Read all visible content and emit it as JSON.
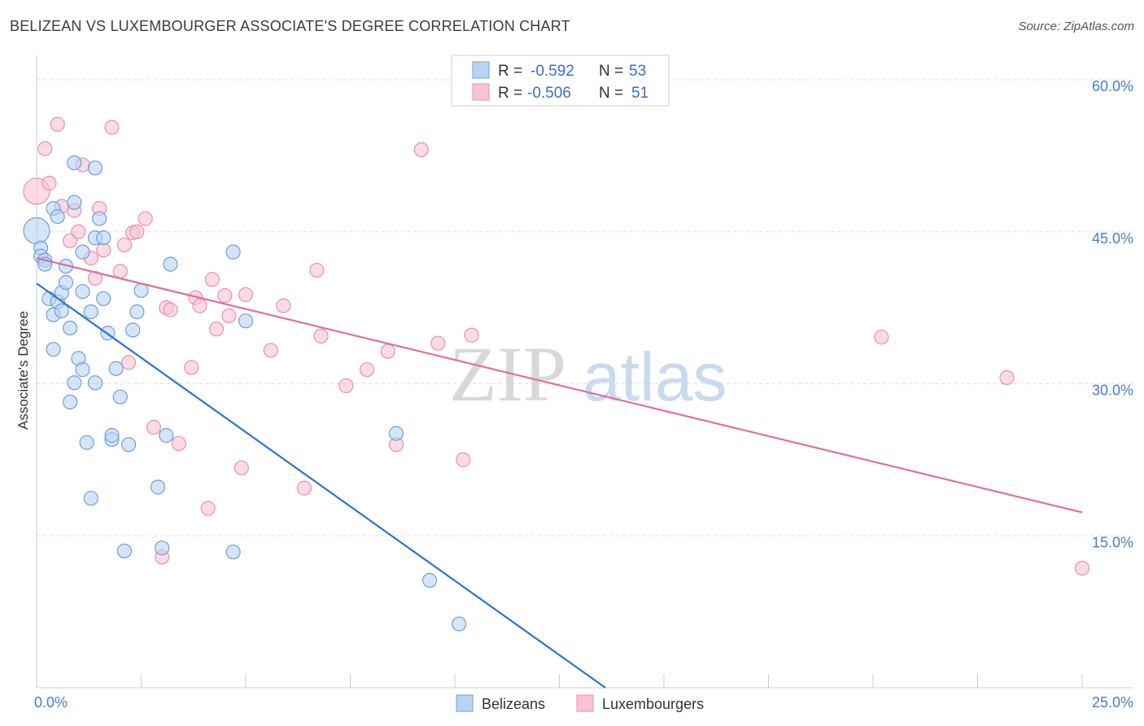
{
  "title": "BELIZEAN VS LUXEMBOURGER ASSOCIATE'S DEGREE CORRELATION CHART",
  "source": "Source: ZipAtlas.com",
  "watermark": {
    "zip": "ZIP",
    "atlas": "atlas"
  },
  "colors": {
    "blue_fill": "#b9d3f2",
    "blue_stroke": "#6e9fdc",
    "blue_line": "#2f74d0",
    "pink_fill": "#f8c3d4",
    "pink_stroke": "#e891ad",
    "pink_line": "#e0709a",
    "grid": "#dddddd",
    "tick_text": "#4a7cc7"
  },
  "legend": {
    "rows": [
      {
        "r_label": "R =",
        "r_value": "-0.592",
        "n_label": "N =",
        "n_value": "53"
      },
      {
        "r_label": "R =",
        "r_value": "-0.506",
        "n_label": "N =",
        "n_value": "51"
      }
    ]
  },
  "chart_data": {
    "type": "scatter",
    "title": "BELIZEAN VS LUXEMBOURGER ASSOCIATE'S DEGREE CORRELATION CHART",
    "xlabel": "",
    "ylabel": "Associate's Degree",
    "xlim": [
      0,
      25
    ],
    "ylim": [
      0,
      60
    ],
    "x_tick_labels": [
      "0.0%",
      "25.0%"
    ],
    "y_ticks": [
      15,
      30,
      45,
      60
    ],
    "y_tick_labels": [
      "15.0%",
      "30.0%",
      "45.0%",
      "60.0%"
    ],
    "grid": true,
    "legend_position": "top-center",
    "series": [
      {
        "name": "Belizeans",
        "color": "#6e9fdc",
        "regression": {
          "x": [
            0,
            13.6
          ],
          "y": [
            39.9,
            0
          ]
        },
        "points": [
          [
            0.0,
            45.1
          ],
          [
            0.1,
            43.4
          ],
          [
            0.1,
            42.6
          ],
          [
            0.2,
            42.2
          ],
          [
            0.2,
            41.8
          ],
          [
            0.3,
            38.4
          ],
          [
            0.4,
            47.3
          ],
          [
            0.4,
            36.8
          ],
          [
            0.4,
            33.4
          ],
          [
            0.5,
            46.5
          ],
          [
            0.5,
            38.1
          ],
          [
            0.6,
            39.0
          ],
          [
            0.6,
            37.2
          ],
          [
            0.7,
            40.0
          ],
          [
            0.7,
            41.6
          ],
          [
            0.8,
            35.5
          ],
          [
            0.8,
            28.2
          ],
          [
            0.9,
            30.1
          ],
          [
            0.9,
            51.8
          ],
          [
            0.9,
            47.9
          ],
          [
            1.0,
            32.5
          ],
          [
            1.1,
            43.0
          ],
          [
            1.1,
            39.1
          ],
          [
            1.1,
            31.4
          ],
          [
            1.2,
            24.2
          ],
          [
            1.3,
            37.1
          ],
          [
            1.3,
            18.7
          ],
          [
            1.4,
            30.1
          ],
          [
            1.4,
            51.3
          ],
          [
            1.4,
            44.4
          ],
          [
            1.5,
            46.3
          ],
          [
            1.6,
            38.4
          ],
          [
            1.6,
            44.4
          ],
          [
            1.7,
            35.0
          ],
          [
            1.8,
            24.5
          ],
          [
            1.8,
            24.9
          ],
          [
            1.9,
            31.5
          ],
          [
            2.0,
            28.7
          ],
          [
            2.1,
            13.5
          ],
          [
            2.2,
            24.0
          ],
          [
            2.3,
            35.3
          ],
          [
            2.4,
            37.1
          ],
          [
            2.5,
            39.2
          ],
          [
            2.9,
            19.8
          ],
          [
            3.0,
            13.8
          ],
          [
            3.1,
            24.9
          ],
          [
            3.2,
            41.8
          ],
          [
            4.7,
            43.0
          ],
          [
            4.7,
            13.4
          ],
          [
            5.0,
            36.2
          ],
          [
            8.6,
            25.1
          ],
          [
            9.4,
            10.6
          ],
          [
            10.1,
            6.3
          ]
        ]
      },
      {
        "name": "Luxembourgers",
        "color": "#e891ad",
        "regression": {
          "x": [
            0,
            25
          ],
          "y": [
            42.4,
            17.3
          ]
        },
        "points": [
          [
            0.0,
            49.0
          ],
          [
            0.2,
            53.2
          ],
          [
            0.3,
            49.8
          ],
          [
            0.5,
            55.6
          ],
          [
            0.6,
            47.5
          ],
          [
            0.8,
            44.1
          ],
          [
            0.9,
            47.1
          ],
          [
            1.0,
            45.0
          ],
          [
            1.1,
            51.6
          ],
          [
            1.3,
            42.4
          ],
          [
            1.4,
            40.4
          ],
          [
            1.5,
            47.3
          ],
          [
            1.6,
            43.2
          ],
          [
            1.8,
            55.3
          ],
          [
            2.0,
            41.1
          ],
          [
            2.1,
            43.7
          ],
          [
            2.2,
            32.1
          ],
          [
            2.3,
            44.9
          ],
          [
            2.4,
            45.0
          ],
          [
            2.6,
            46.3
          ],
          [
            2.8,
            25.7
          ],
          [
            3.0,
            12.9
          ],
          [
            3.1,
            37.5
          ],
          [
            3.2,
            37.3
          ],
          [
            3.4,
            24.1
          ],
          [
            3.7,
            31.6
          ],
          [
            3.8,
            38.5
          ],
          [
            3.9,
            37.7
          ],
          [
            4.1,
            17.7
          ],
          [
            4.2,
            40.3
          ],
          [
            4.3,
            35.4
          ],
          [
            4.5,
            38.7
          ],
          [
            4.6,
            36.7
          ],
          [
            4.9,
            21.7
          ],
          [
            5.0,
            38.8
          ],
          [
            5.6,
            33.3
          ],
          [
            5.9,
            37.7
          ],
          [
            6.4,
            19.7
          ],
          [
            6.7,
            41.2
          ],
          [
            6.8,
            34.7
          ],
          [
            7.4,
            29.8
          ],
          [
            7.9,
            31.4
          ],
          [
            8.4,
            33.2
          ],
          [
            8.6,
            24.0
          ],
          [
            9.2,
            53.1
          ],
          [
            9.6,
            34.0
          ],
          [
            10.2,
            22.5
          ],
          [
            10.4,
            34.8
          ],
          [
            20.2,
            34.6
          ],
          [
            23.2,
            30.6
          ],
          [
            25.0,
            11.8
          ]
        ]
      }
    ]
  }
}
